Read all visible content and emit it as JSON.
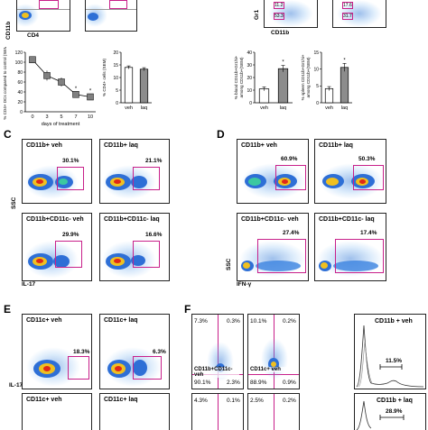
{
  "panel_labels": {
    "c": "C",
    "d": "D",
    "e": "E",
    "f": "F"
  },
  "top": {
    "cd11b_axis": "CD11b",
    "cd4_axis": "CD4",
    "gr1_axis": "Gr1",
    "cd11b_axis2": "CD11b",
    "gate_values": [
      "11.2",
      "53.3",
      "17.6",
      "31.7"
    ]
  },
  "bar_charts": {
    "cd4_dc": {
      "ylabel": "% CD4+ DCs compared to control (SEM)",
      "xlabel": "days of treatment",
      "categories": [
        "0",
        "3",
        "5",
        "7",
        "10"
      ],
      "yticks": [
        "0",
        "20",
        "40",
        "60",
        "80",
        "100",
        "120"
      ]
    },
    "cd4_cells": {
      "ylabel": "% CD4+ cells (SEM)",
      "categories": [
        "veh",
        "laq"
      ],
      "yticks": [
        "0",
        "5",
        "10",
        "15",
        "20"
      ]
    },
    "blood": {
      "ylabel": "% blood CD11b+Gr1hi+ among CD11b+(SEM)",
      "categories": [
        "veh",
        "laq"
      ],
      "yticks": [
        "0",
        "10",
        "20",
        "30",
        "40"
      ]
    },
    "spleen": {
      "ylabel": "% spleen CD11b+Gr1hi+ among CD11b+(SEM)",
      "categories": [
        "veh",
        "laq"
      ],
      "yticks": [
        "0",
        "5",
        "10",
        "15"
      ]
    }
  },
  "chart_data": [
    {
      "type": "line",
      "title": "",
      "xlabel": "days of treatment",
      "ylabel": "% CD4+ DCs compared to control (SEM)",
      "categories": [
        "0",
        "3",
        "5",
        "7",
        "10"
      ],
      "values": [
        105,
        73,
        60,
        35,
        30
      ],
      "ylim": [
        0,
        120
      ]
    },
    {
      "type": "bar",
      "title": "",
      "xlabel": "",
      "ylabel": "% CD4+ cells (SEM)",
      "categories": [
        "veh",
        "laq"
      ],
      "values": [
        14,
        13.3
      ],
      "ylim": [
        0,
        20
      ]
    },
    {
      "type": "bar",
      "title": "",
      "xlabel": "",
      "ylabel": "% blood CD11b+Gr1hi+ among CD11b+(SEM)",
      "categories": [
        "veh",
        "laq"
      ],
      "values": [
        11,
        27
      ],
      "ylim": [
        0,
        40
      ]
    },
    {
      "type": "bar",
      "title": "",
      "xlabel": "",
      "ylabel": "% spleen CD11b+Gr1hi+ among CD11b+(SEM)",
      "categories": [
        "veh",
        "laq"
      ],
      "values": [
        4.2,
        10.5
      ],
      "ylim": [
        0,
        15
      ]
    }
  ],
  "star": "*",
  "panel_c": {
    "plots": [
      {
        "title": "CD11b+ veh",
        "pct": "30.1%"
      },
      {
        "title": "CD11b+ laq",
        "pct": "21.1%"
      },
      {
        "title": "CD11b+CD11c- veh",
        "pct": "29.9%"
      },
      {
        "title": "CD11b+CD11c- laq",
        "pct": "16.6%"
      }
    ],
    "ylabel": "SSC",
    "xlabel": "IL-17"
  },
  "panel_d": {
    "plots": [
      {
        "title": "CD11b+ veh",
        "pct": "60.9%"
      },
      {
        "title": "CD11b+ laq",
        "pct": "50.3%"
      },
      {
        "title": "CD11b+CD11c- veh",
        "pct": "27.4%"
      },
      {
        "title": "CD11b+CD11c- laq",
        "pct": "17.4%"
      }
    ],
    "ylabel": "SSC",
    "xlabel": "IFN-γ"
  },
  "panel_e": {
    "plots": [
      {
        "title": "CD11c+ veh",
        "pct": "18.3%"
      },
      {
        "title": "CD11c+ laq",
        "pct": "6.3%"
      },
      {
        "title": "CD11c+ veh"
      },
      {
        "title": "CD11c+ laq"
      }
    ],
    "xlabel": "IL-17"
  },
  "panel_f": {
    "q1": {
      "tl": "7.3%",
      "tr": "0.3%",
      "bl": "90.1%",
      "br": "2.3%",
      "label": "CD11b+CD11c- veh"
    },
    "q2": {
      "tl": "10.1%",
      "tr": "0.2%",
      "bl": "88.9%",
      "br": "0.9%",
      "label": "CD11c+ veh"
    },
    "q3": {
      "tl": "4.3%",
      "tr": "0.1%"
    },
    "q4": {
      "tl": "2.5%",
      "tr": "0.2%"
    },
    "hist1": {
      "title": "CD11b + veh",
      "pct": "11.5%"
    },
    "hist2": {
      "title": "CD11b + laq",
      "pct": "28.9%"
    }
  }
}
